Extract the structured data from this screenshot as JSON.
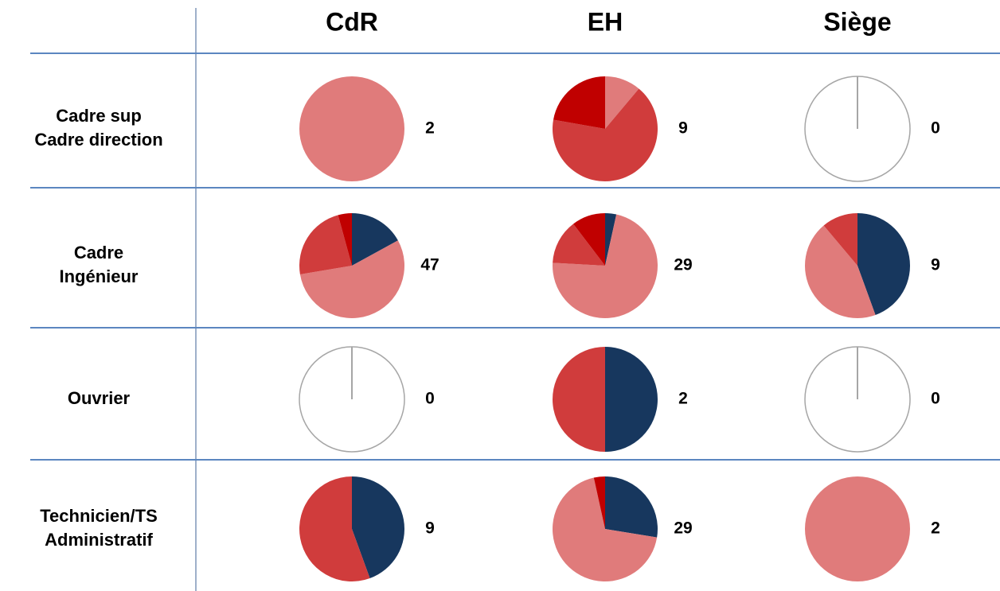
{
  "columns": [
    "CdR",
    "EH",
    "Siège"
  ],
  "rows": [
    [
      "Cadre sup",
      "Cadre direction"
    ],
    [
      "Cadre",
      "Ingénieur"
    ],
    [
      "Ouvrier"
    ],
    [
      "Technicien/TS",
      "Administratif"
    ]
  ],
  "colors": [
    "#17375e",
    "#e07b7b",
    "#d03c3c",
    "#c00000"
  ],
  "chart_data": [
    {
      "type": "pie",
      "values": [
        0,
        2,
        0,
        0
      ],
      "total": 2
    },
    {
      "type": "pie",
      "values": [
        0,
        1,
        6,
        2
      ],
      "total": 9
    },
    {
      "type": "pie",
      "values": [
        0,
        0,
        0,
        0
      ],
      "total": 0
    },
    {
      "type": "pie",
      "values": [
        8,
        26,
        11,
        2
      ],
      "total": 47
    },
    {
      "type": "pie",
      "values": [
        1,
        21,
        4,
        3
      ],
      "total": 29
    },
    {
      "type": "pie",
      "values": [
        4,
        4,
        1,
        0
      ],
      "total": 9
    },
    {
      "type": "pie",
      "values": [
        0,
        0,
        0,
        0
      ],
      "total": 0
    },
    {
      "type": "pie",
      "values": [
        1,
        0,
        1,
        0
      ],
      "total": 2
    },
    {
      "type": "pie",
      "values": [
        0,
        0,
        0,
        0
      ],
      "total": 0
    },
    {
      "type": "pie",
      "values": [
        4,
        0,
        5,
        0
      ],
      "total": 9
    },
    {
      "type": "pie",
      "values": [
        8,
        20,
        0,
        1
      ],
      "total": 29
    },
    {
      "type": "pie",
      "values": [
        0,
        2,
        0,
        0
      ],
      "total": 2
    }
  ]
}
